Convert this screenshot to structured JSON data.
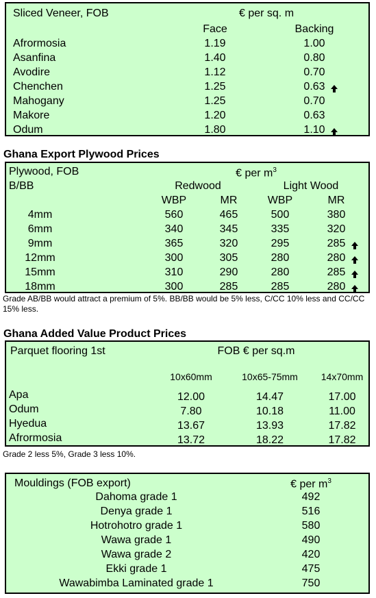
{
  "veneer": {
    "title": "Sliced Veneer, FOB",
    "unit": "€ per sq. m",
    "col_face": "Face",
    "col_backing": "Backing",
    "rows": [
      {
        "name": "Afrormosia",
        "face": "1.19",
        "backing": "1.00",
        "up": false
      },
      {
        "name": "Asanfina",
        "face": "1.40",
        "backing": "0.80",
        "up": false
      },
      {
        "name": "Avodire",
        "face": "1.12",
        "backing": "0.70",
        "up": false
      },
      {
        "name": "Chenchen",
        "face": "1.25",
        "backing": "0.63",
        "up": true
      },
      {
        "name": "Mahogany",
        "face": "1.25",
        "backing": "0.70",
        "up": false
      },
      {
        "name": "Makore",
        "face": "1.20",
        "backing": "0.63",
        "up": false
      },
      {
        "name": "Odum",
        "face": "1.80",
        "backing": "1.10",
        "up": true
      }
    ]
  },
  "plywood": {
    "heading": "Ghana Export Plywood Prices",
    "title": "Plywood, FOB",
    "unit_base": "€ per m",
    "unit_sup": "3",
    "grade": "B/BB",
    "group_redwood": "Redwood",
    "group_lightwood": "Light Wood",
    "col_wbp": "WBP",
    "col_mr": "MR",
    "rows": [
      {
        "size": "4mm",
        "rw_wbp": "560",
        "rw_mr": "465",
        "lw_wbp": "500",
        "lw_mr": "380",
        "up": false
      },
      {
        "size": "6mm",
        "rw_wbp": "340",
        "rw_mr": "345",
        "lw_wbp": "335",
        "lw_mr": "320",
        "up": false
      },
      {
        "size": "9mm",
        "rw_wbp": "365",
        "rw_mr": "320",
        "lw_wbp": "295",
        "lw_mr": "285",
        "up": true
      },
      {
        "size": "12mm",
        "rw_wbp": "300",
        "rw_mr": "305",
        "lw_wbp": "280",
        "lw_mr": "280",
        "up": true
      },
      {
        "size": "15mm",
        "rw_wbp": "310",
        "rw_mr": "290",
        "lw_wbp": "280",
        "lw_mr": "285",
        "up": true
      },
      {
        "size": "18mm",
        "rw_wbp": "300",
        "rw_mr": "285",
        "lw_wbp": "285",
        "lw_mr": "280",
        "up": true
      }
    ],
    "note": "Grade AB/BB would attract a premium of 5%. BB/BB would be 5% less, C/CC 10% less and CC/CC 15% less."
  },
  "parquet": {
    "heading": "Ghana Added Value Product Prices",
    "title": "Parquet flooring 1st",
    "unit": "FOB € per sq.m",
    "col1": "10x60mm",
    "col2": "10x65-75mm",
    "col3": "14x70mm",
    "rows": [
      {
        "name": "Apa",
        "v1": "12.00",
        "v2": "14.47",
        "v3": "17.00"
      },
      {
        "name": "Odum",
        "v1": "7.80",
        "v2": "10.18",
        "v3": "11.00"
      },
      {
        "name": "Hyedua",
        "v1": "13.67",
        "v2": "13.93",
        "v3": "17.82"
      },
      {
        "name": "Afrormosia",
        "v1": "13.72",
        "v2": "18.22",
        "v3": "17.82"
      }
    ],
    "note": "Grade 2 less 5%, Grade 3 less 10%."
  },
  "mouldings": {
    "title": "Mouldings (FOB export)",
    "unit_base": "€ per m",
    "unit_sup": "3",
    "rows": [
      {
        "name": "Dahoma grade 1",
        "value": "492"
      },
      {
        "name": "Denya grade 1",
        "value": "516"
      },
      {
        "name": "Hotrohotro grade 1",
        "value": "580"
      },
      {
        "name": "Wawa grade 1",
        "value": "490"
      },
      {
        "name": "Wawa grade 2",
        "value": "420"
      },
      {
        "name": "Ekki grade 1",
        "value": "475"
      },
      {
        "name": "Wawabimba Laminated grade 1",
        "value": "750"
      }
    ]
  }
}
